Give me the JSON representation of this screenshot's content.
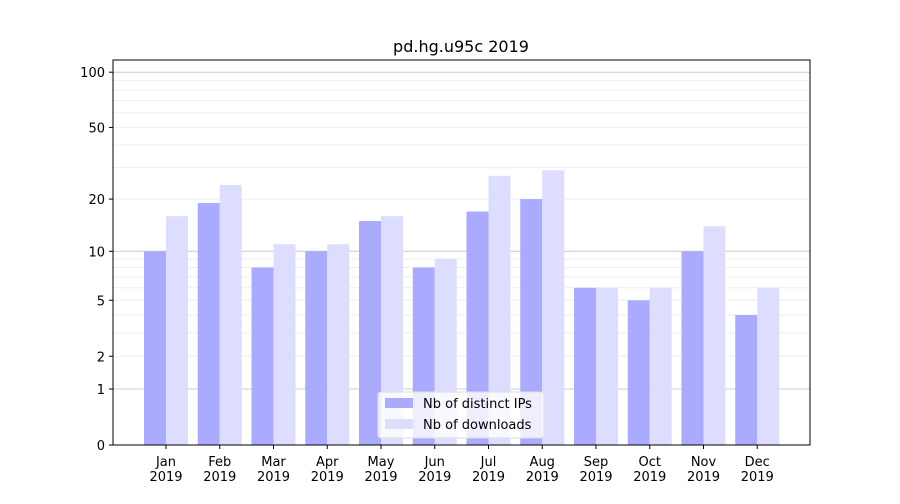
{
  "chart_data": {
    "type": "bar",
    "title": "pd.hg.u95c 2019",
    "xlabel": "",
    "ylabel": "",
    "yscale": "symlog (log(1+y))",
    "ylim": [
      0,
      110
    ],
    "yticks": [
      0,
      1,
      2,
      5,
      10,
      20,
      50,
      100
    ],
    "grid": true,
    "legend_position": "bottom-center",
    "categories": [
      "Jan\n2019",
      "Feb\n2019",
      "Mar\n2019",
      "Apr\n2019",
      "May\n2019",
      "Jun\n2019",
      "Jul\n2019",
      "Aug\n2019",
      "Sep\n2019",
      "Oct\n2019",
      "Nov\n2019",
      "Dec\n2019"
    ],
    "series": [
      {
        "name": "Nb of distinct IPs",
        "color": "#aaaaff",
        "values": [
          10,
          19,
          8,
          10,
          15,
          8,
          17,
          20,
          6,
          5,
          10,
          4
        ]
      },
      {
        "name": "Nb of downloads",
        "color": "#ddddff",
        "values": [
          16,
          24,
          11,
          11,
          16,
          9,
          27,
          29,
          6,
          6,
          14,
          6
        ]
      }
    ]
  }
}
